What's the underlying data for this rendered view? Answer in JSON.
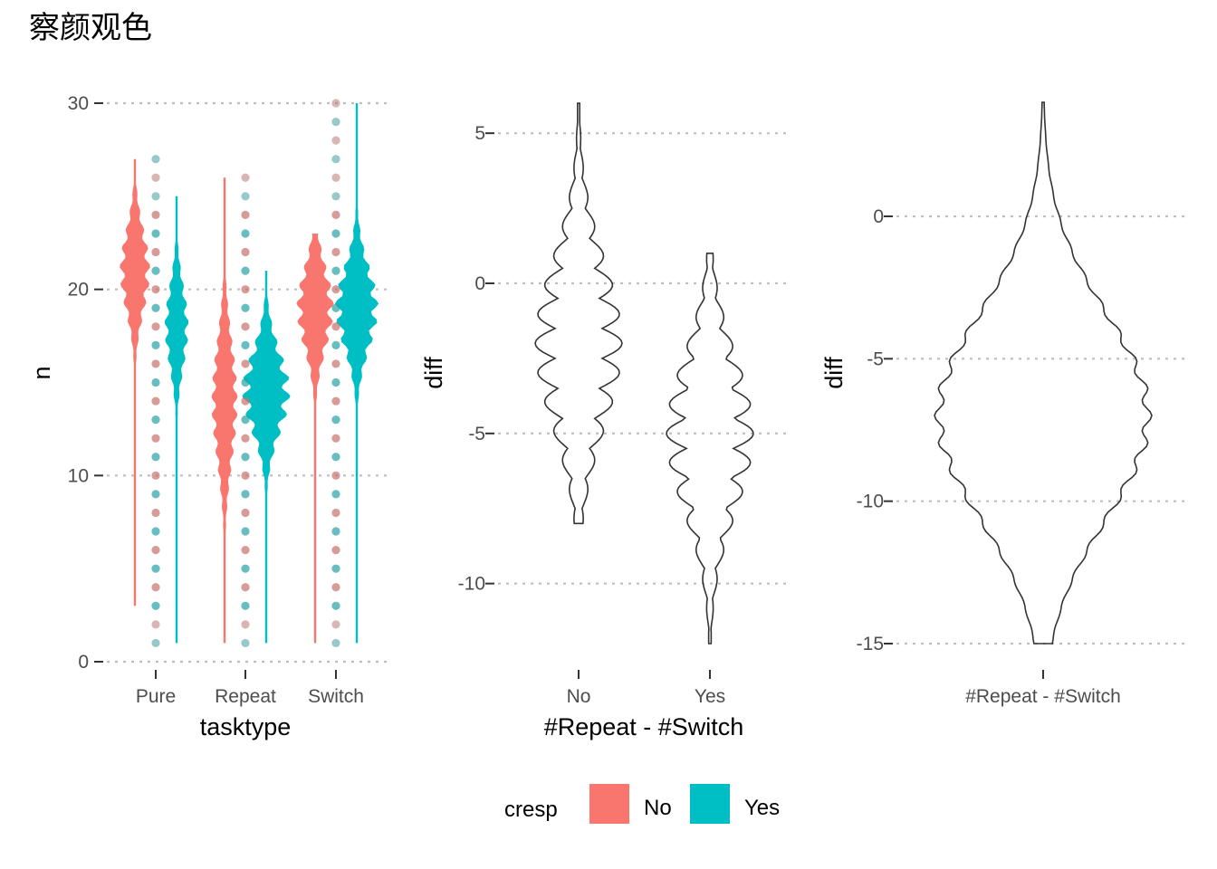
{
  "title": "察颜观色",
  "colors": {
    "No": "#F8766D",
    "Yes": "#00BFC4",
    "outline": "#333333"
  },
  "legend": {
    "title": "cresp",
    "items": [
      "No",
      "Yes"
    ],
    "position": "bottom"
  },
  "chart_data": [
    {
      "type": "violin",
      "xlabel": "tasktype",
      "ylabel": "n",
      "categories": [
        "Pure",
        "Repeat",
        "Switch"
      ],
      "ylim": [
        0,
        30
      ],
      "yticks": [
        0,
        10,
        20,
        30
      ],
      "grid": true,
      "series": [
        {
          "name": "No",
          "ranges": [
            [
              3,
              27
            ],
            [
              1,
              26
            ],
            [
              1,
              23
            ]
          ],
          "modes": [
            21,
            14,
            19
          ]
        },
        {
          "name": "Yes",
          "ranges": [
            [
              1,
              25
            ],
            [
              1,
              21
            ],
            [
              1,
              30
            ]
          ],
          "modes": [
            18,
            14.5,
            19
          ]
        }
      ],
      "points": [
        {
          "category": "Pure",
          "y_range": [
            1,
            27
          ]
        },
        {
          "category": "Repeat",
          "y_range": [
            1,
            26
          ]
        },
        {
          "category": "Switch",
          "y_range": [
            1,
            30
          ]
        }
      ]
    },
    {
      "type": "violin",
      "xlabel": "#Repeat - #Switch",
      "ylabel": "diff",
      "categories": [
        "No",
        "Yes"
      ],
      "ylim": [
        -12,
        6
      ],
      "yticks": [
        -10,
        -5,
        0,
        5
      ],
      "grid": true,
      "series": [
        {
          "category": "No",
          "range": [
            -8,
            6
          ],
          "mode": -2
        },
        {
          "category": "Yes",
          "range": [
            -12,
            1
          ],
          "mode": -5
        }
      ]
    },
    {
      "type": "violin",
      "xlabel": "",
      "ylabel": "diff",
      "categories": [
        "#Repeat - #Switch"
      ],
      "ylim": [
        -15,
        4
      ],
      "yticks": [
        -15,
        -10,
        -5,
        0
      ],
      "grid": true,
      "series": [
        {
          "category": "#Repeat - #Switch",
          "range": [
            -15,
            4
          ],
          "mode": -7
        }
      ]
    }
  ]
}
